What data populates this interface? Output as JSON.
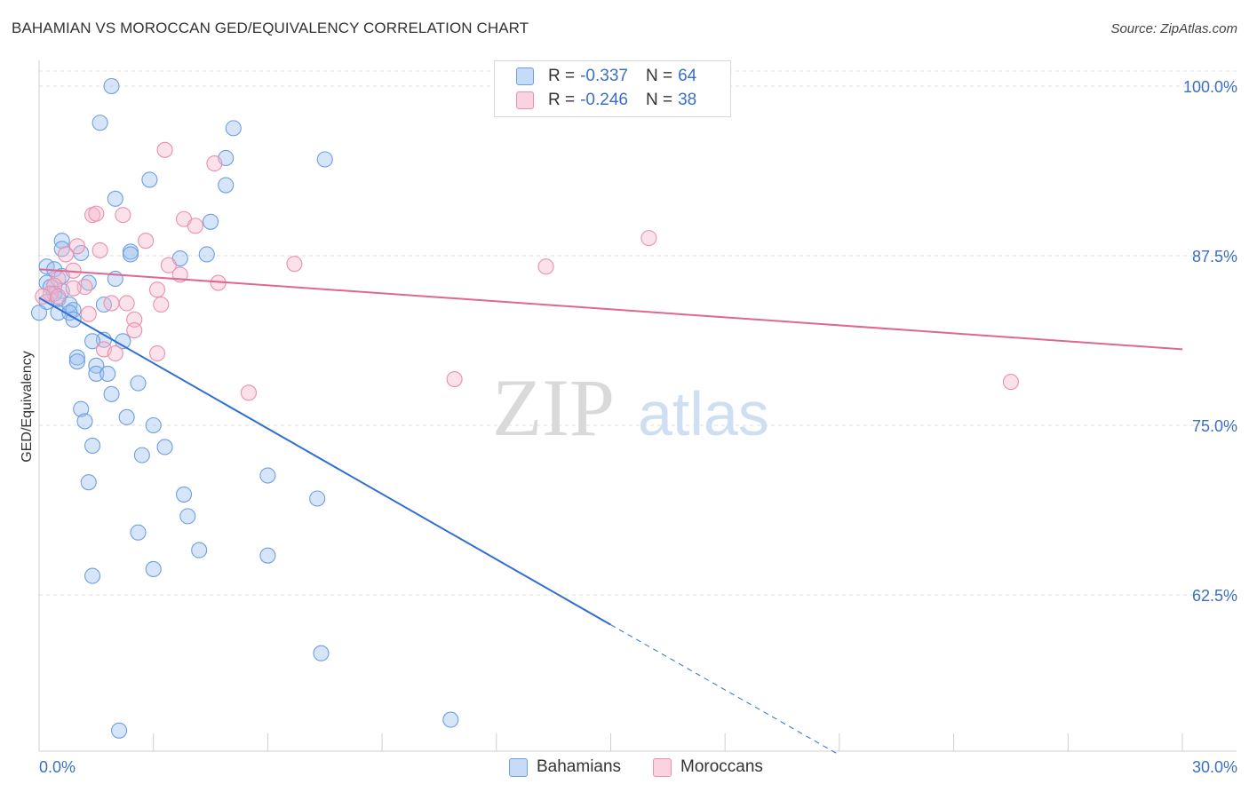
{
  "chart_data": {
    "type": "scatter",
    "title": "BAHAMIAN VS MOROCCAN GED/EQUIVALENCY CORRELATION CHART",
    "source": "Source: ZipAtlas.com",
    "ylabel": "GED/Equivalency",
    "xlabel": "",
    "xlim": [
      0,
      30
    ],
    "ylim": [
      51,
      102
    ],
    "x_tick_labels": {
      "left": "0.0%",
      "right": "30.0%"
    },
    "y_ticks": [
      {
        "value": 100,
        "label": "100.0%"
      },
      {
        "value": 87.5,
        "label": "87.5%"
      },
      {
        "value": 75,
        "label": "75.0%"
      },
      {
        "value": 62.5,
        "label": "62.5%"
      }
    ],
    "grid": "horizontal dashed",
    "watermark": {
      "zip": "ZIP",
      "atlas": "atlas"
    },
    "legend": [
      {
        "r_label": "R =",
        "r_value": "-0.337",
        "n_label": "N =",
        "n_value": "64"
      },
      {
        "r_label": "R =",
        "r_value": "-0.246",
        "n_label": "N =",
        "n_value": "38"
      }
    ],
    "series": [
      {
        "name": "Bahamians",
        "color": "#9dc0ef",
        "stroke": "#6f9fe0",
        "line_color": "#2e6fd1",
        "trend": {
          "x1": 0,
          "y1": 84.4,
          "x2": 15,
          "y2": 60.3,
          "dash_to_x": 21.0,
          "dash_to_y": 50.7
        },
        "points": [
          [
            1.9,
            100.0
          ],
          [
            1.6,
            97.3
          ],
          [
            5.1,
            96.9
          ],
          [
            2.0,
            91.7
          ],
          [
            2.9,
            93.1
          ],
          [
            4.9,
            94.7
          ],
          [
            7.5,
            94.6
          ],
          [
            4.9,
            92.7
          ],
          [
            4.5,
            90.0
          ],
          [
            0.6,
            88.6
          ],
          [
            0.6,
            88.0
          ],
          [
            1.1,
            87.7
          ],
          [
            2.4,
            87.8
          ],
          [
            3.7,
            87.3
          ],
          [
            4.4,
            87.6
          ],
          [
            2.4,
            87.6
          ],
          [
            0.2,
            86.7
          ],
          [
            0.4,
            86.5
          ],
          [
            0.6,
            86.0
          ],
          [
            1.3,
            85.5
          ],
          [
            2.0,
            85.8
          ],
          [
            0.2,
            85.5
          ],
          [
            0.3,
            85.2
          ],
          [
            0.6,
            84.9
          ],
          [
            0.4,
            84.7
          ],
          [
            0.5,
            84.3
          ],
          [
            0.2,
            84.1
          ],
          [
            0.0,
            83.3
          ],
          [
            1.7,
            83.9
          ],
          [
            0.8,
            83.9
          ],
          [
            0.5,
            83.3
          ],
          [
            0.9,
            83.5
          ],
          [
            0.8,
            83.3
          ],
          [
            0.9,
            82.8
          ],
          [
            1.7,
            81.3
          ],
          [
            1.4,
            81.2
          ],
          [
            2.2,
            81.2
          ],
          [
            1.0,
            80.0
          ],
          [
            1.0,
            79.7
          ],
          [
            1.5,
            79.4
          ],
          [
            1.5,
            78.8
          ],
          [
            1.8,
            78.8
          ],
          [
            2.6,
            78.1
          ],
          [
            1.9,
            77.3
          ],
          [
            1.1,
            76.2
          ],
          [
            2.3,
            75.6
          ],
          [
            1.2,
            75.3
          ],
          [
            3.0,
            75.0
          ],
          [
            1.4,
            73.5
          ],
          [
            3.3,
            73.4
          ],
          [
            2.7,
            72.8
          ],
          [
            6.0,
            71.3
          ],
          [
            1.3,
            70.8
          ],
          [
            3.8,
            69.9
          ],
          [
            7.3,
            69.6
          ],
          [
            3.9,
            68.3
          ],
          [
            2.6,
            67.1
          ],
          [
            4.2,
            65.8
          ],
          [
            6.0,
            65.4
          ],
          [
            3.0,
            64.4
          ],
          [
            1.4,
            63.9
          ],
          [
            7.4,
            58.2
          ],
          [
            2.1,
            52.5
          ],
          [
            10.8,
            53.3
          ]
        ]
      },
      {
        "name": "Moroccans",
        "color": "#f6b7cb",
        "stroke": "#ec8fae",
        "line_color": "#e0678f",
        "trend": {
          "x1": 0,
          "y1": 86.5,
          "x2": 30,
          "y2": 80.6
        },
        "points": [
          [
            3.3,
            95.3
          ],
          [
            4.6,
            94.3
          ],
          [
            1.4,
            90.5
          ],
          [
            1.5,
            90.6
          ],
          [
            2.2,
            90.5
          ],
          [
            3.8,
            90.2
          ],
          [
            4.1,
            89.7
          ],
          [
            2.8,
            88.6
          ],
          [
            16.0,
            88.8
          ],
          [
            1.0,
            88.2
          ],
          [
            1.6,
            87.9
          ],
          [
            0.7,
            87.6
          ],
          [
            3.4,
            86.8
          ],
          [
            6.7,
            86.9
          ],
          [
            13.3,
            86.7
          ],
          [
            0.9,
            86.4
          ],
          [
            0.5,
            85.8
          ],
          [
            3.7,
            86.1
          ],
          [
            4.7,
            85.5
          ],
          [
            0.4,
            85.3
          ],
          [
            1.2,
            85.2
          ],
          [
            3.1,
            85.0
          ],
          [
            0.3,
            84.7
          ],
          [
            0.5,
            84.5
          ],
          [
            1.9,
            84.0
          ],
          [
            2.3,
            84.0
          ],
          [
            3.2,
            83.9
          ],
          [
            1.3,
            83.2
          ],
          [
            2.5,
            82.8
          ],
          [
            2.5,
            82.0
          ],
          [
            1.7,
            80.6
          ],
          [
            2.0,
            80.3
          ],
          [
            3.1,
            80.3
          ],
          [
            10.9,
            78.4
          ],
          [
            25.5,
            78.2
          ],
          [
            5.5,
            77.4
          ],
          [
            0.1,
            84.5
          ],
          [
            0.9,
            85.1
          ]
        ]
      }
    ]
  }
}
